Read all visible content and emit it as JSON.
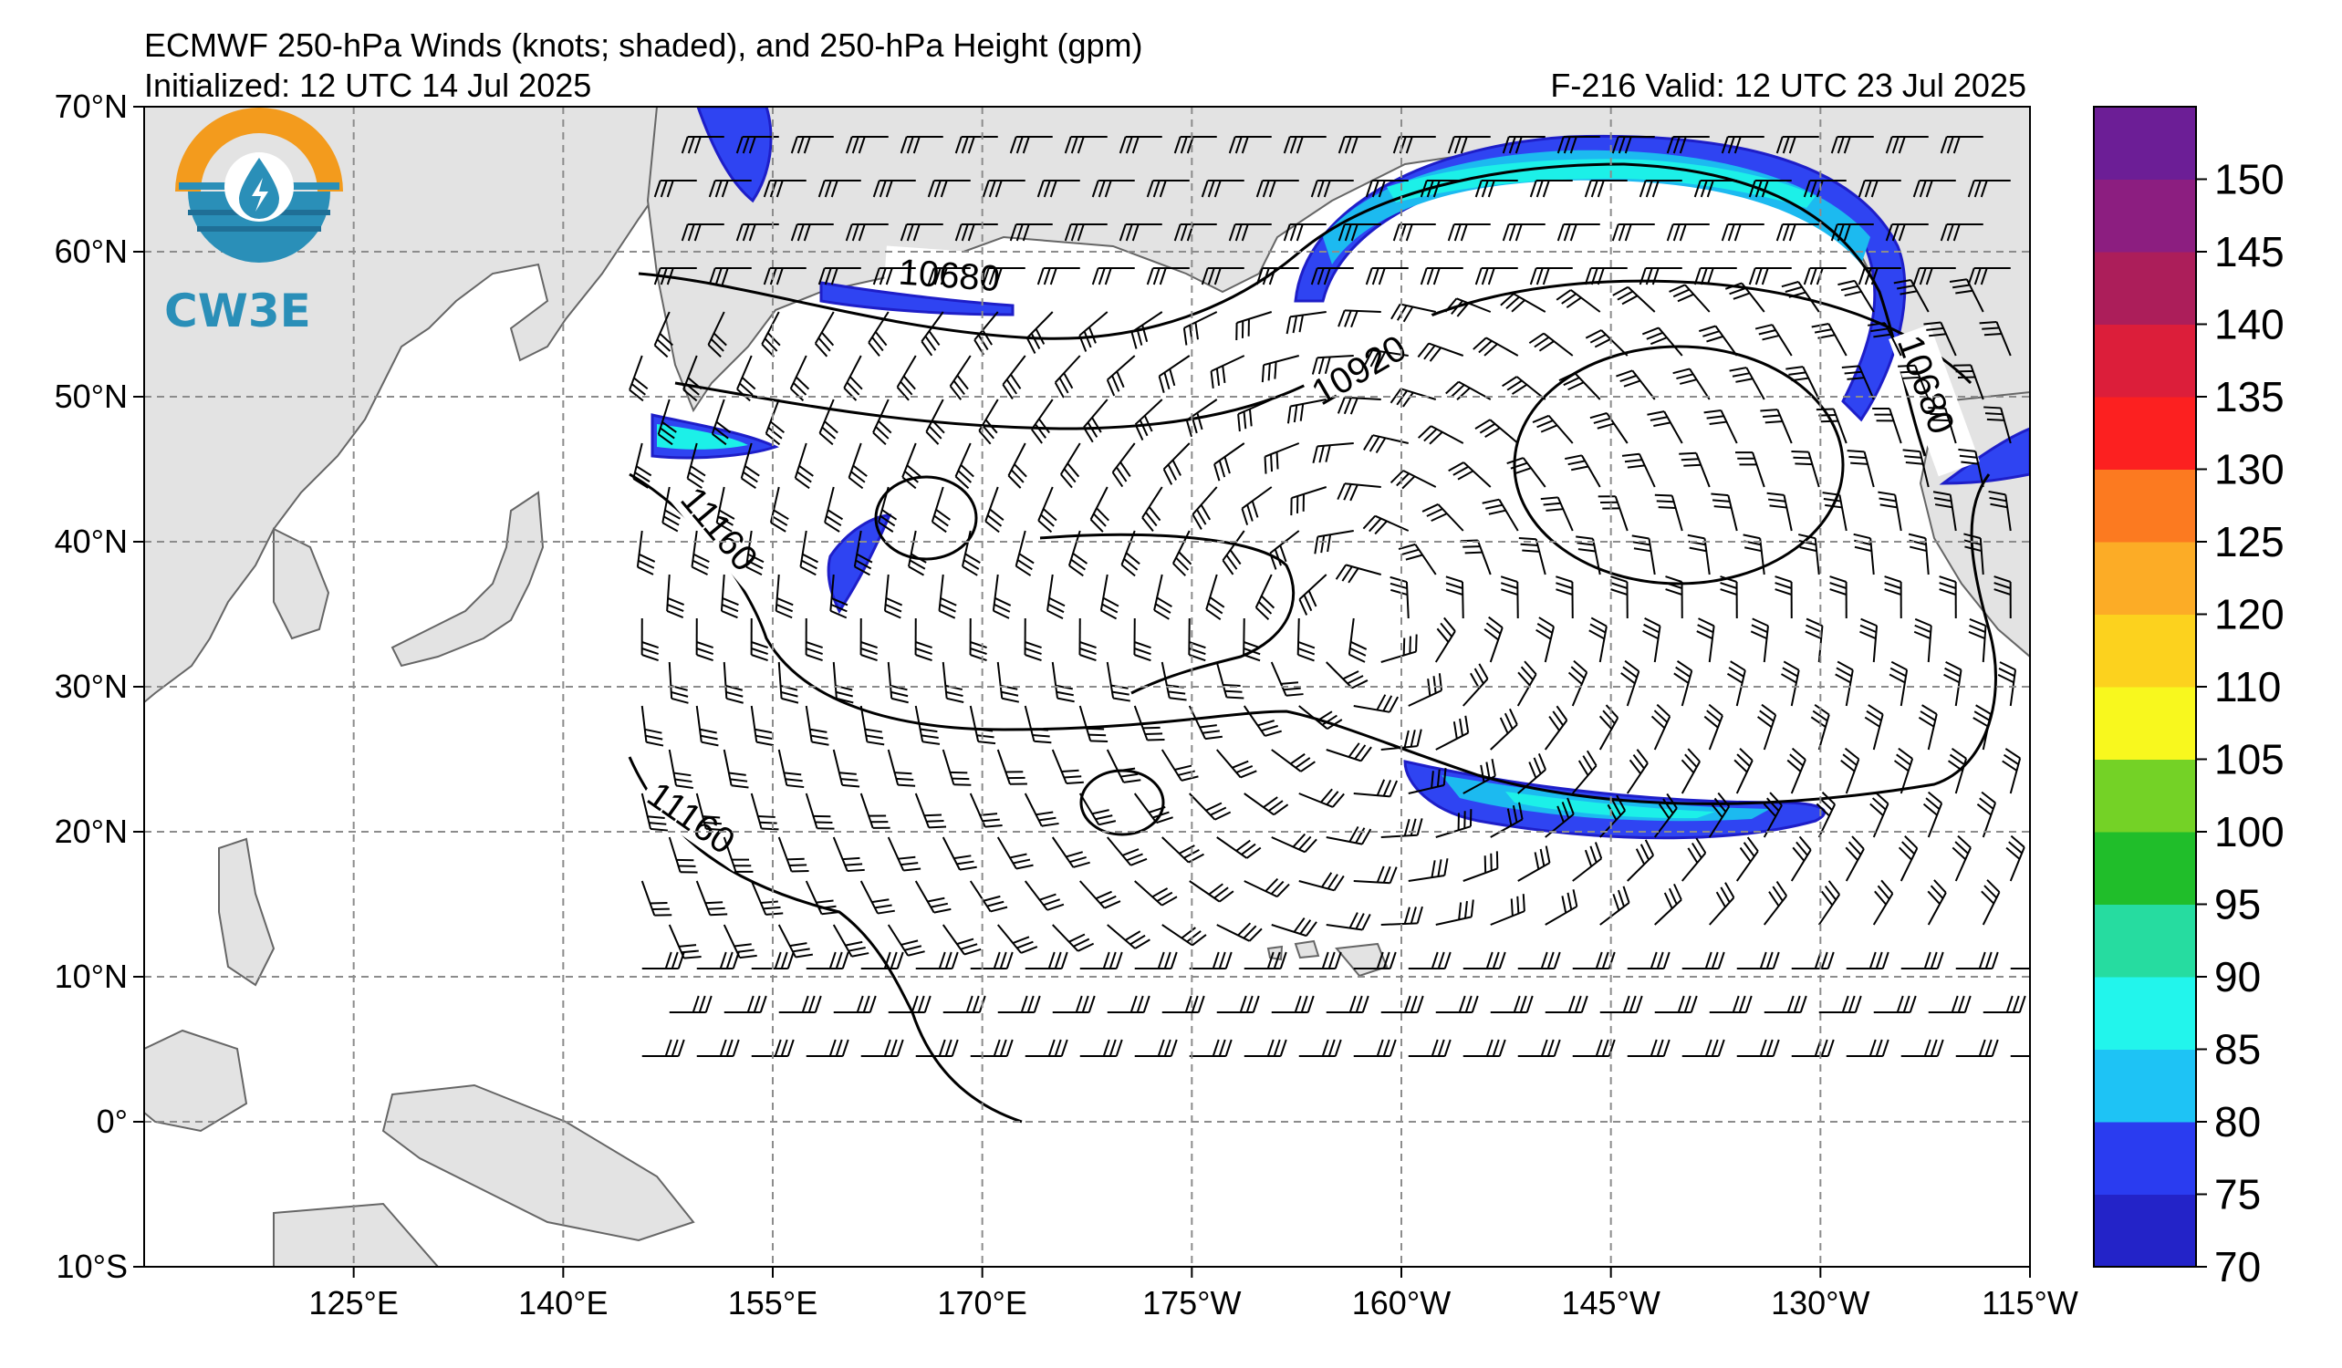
{
  "header": {
    "title": "ECMWF 250-hPa Winds (knots; shaded), and 250-hPa Height (gpm)",
    "initialized": "Initialized: 12 UTC 14 Jul 2025",
    "valid": "F-216  Valid: 12 UTC 23 Jul 2025"
  },
  "logo": {
    "text": "CW3E"
  },
  "map": {
    "lat_range": [
      -10,
      70
    ],
    "lon_range": [
      110,
      245
    ],
    "lat_labels": [
      "70°N",
      "60°N",
      "50°N",
      "40°N",
      "30°N",
      "20°N",
      "10°N",
      "0°",
      "10°S"
    ],
    "lon_labels": [
      "125°E",
      "140°E",
      "155°E",
      "170°E",
      "175°W",
      "160°W",
      "145°W",
      "130°W",
      "115°W"
    ],
    "grid": "dashed",
    "land_color": "#e3e3e3",
    "contour_labels": [
      "10680",
      "10920",
      "11160",
      "11160",
      "10680"
    ],
    "jet_colors": [
      "#1e1ec8",
      "#2f44f2",
      "#1cbaf0",
      "#1cf0e8",
      "#22dca0"
    ]
  },
  "colorbar": {
    "levels": [
      "70",
      "75",
      "80",
      "85",
      "90",
      "95",
      "100",
      "105",
      "110",
      "120",
      "125",
      "130",
      "135",
      "140",
      "145",
      "150"
    ],
    "colors": [
      "#2323c8",
      "#2a3cf0",
      "#1ec3f5",
      "#22f5ec",
      "#26dca0",
      "#20be2a",
      "#74d226",
      "#f8f81e",
      "#fcd21e",
      "#fcac26",
      "#fc7a20",
      "#fc2020",
      "#dc1e3a",
      "#ac1e5a",
      "#8c1e80",
      "#6c1e96"
    ]
  }
}
